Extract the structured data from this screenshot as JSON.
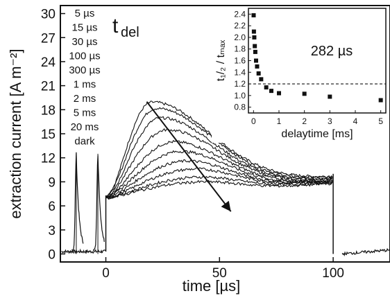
{
  "chart_data": [
    {
      "type": "line",
      "xlabel": "time [µs]",
      "ylabel": "extraction current [A m⁻²]",
      "xlim": [
        -20,
        125
      ],
      "ylim": [
        -1,
        31
      ],
      "x_ticks": [
        0,
        50,
        100
      ],
      "y_ticks": [
        0,
        3,
        6,
        9,
        12,
        15,
        18,
        21,
        24,
        27,
        30
      ],
      "legend_entries": [
        "5 µs",
        "15 µs",
        "30 µs",
        "100 µs",
        "300 µs",
        "1 ms",
        "2 ms",
        "5 ms",
        "20 ms",
        "dark"
      ],
      "annotation": {
        "main": "t",
        "sub": "del"
      },
      "series": [
        {
          "base": 7.3,
          "peak_value": 19.0,
          "peak_time": 20,
          "end_value": 9.6
        },
        {
          "base": 7.3,
          "peak_value": 18.2,
          "peak_time": 22,
          "end_value": 9.5
        },
        {
          "base": 7.2,
          "peak_value": 17.0,
          "peak_time": 24,
          "end_value": 9.4
        },
        {
          "base": 7.2,
          "peak_value": 15.5,
          "peak_time": 27,
          "end_value": 9.3
        },
        {
          "base": 7.1,
          "peak_value": 14.0,
          "peak_time": 30,
          "end_value": 9.2
        },
        {
          "base": 7.1,
          "peak_value": 12.8,
          "peak_time": 33,
          "end_value": 9.1
        },
        {
          "base": 7.1,
          "peak_value": 11.6,
          "peak_time": 36,
          "end_value": 9.0
        },
        {
          "base": 7.0,
          "peak_value": 10.6,
          "peak_time": 40,
          "end_value": 9.0
        },
        {
          "base": 7.0,
          "peak_value": 9.6,
          "peak_time": 43,
          "end_value": 8.9
        },
        {
          "base": 7.0,
          "peak_value": 9.0,
          "peak_time": 45,
          "end_value": 8.8
        }
      ],
      "pre_pulse_spikes": [
        {
          "time": -13,
          "value": 12.5
        },
        {
          "time": -3.5,
          "value": 12.5
        }
      ],
      "arrow": {
        "from": [
          18,
          19.0
        ],
        "to": [
          55,
          5.3
        ]
      },
      "post_pulse_segment": {
        "start_time": 104,
        "end_time": 125,
        "end_value": 0.5
      }
    },
    {
      "type": "scatter",
      "xlabel": "delaytime [ms]",
      "ylabel": "t₁/₂ / tₘₐₓ",
      "xlim": [
        -0.2,
        5.2
      ],
      "ylim": [
        0.7,
        2.5
      ],
      "x_ticks": [
        0,
        1,
        2,
        3,
        4,
        5
      ],
      "y_ticks": [
        0.8,
        1.0,
        1.2,
        1.4,
        1.6,
        1.8,
        2.0,
        2.2,
        2.4
      ],
      "x": [
        0.005,
        0.015,
        0.03,
        0.05,
        0.07,
        0.1,
        0.14,
        0.2,
        0.3,
        0.5,
        0.7,
        1.0,
        2.0,
        3.0,
        5.0
      ],
      "y": [
        2.38,
        2.1,
        2.0,
        1.85,
        1.75,
        1.6,
        1.5,
        1.38,
        1.28,
        1.14,
        1.08,
        1.04,
        1.03,
        0.98,
        0.92
      ],
      "reference_line_y": 1.2,
      "annotation": "282 µs"
    }
  ]
}
